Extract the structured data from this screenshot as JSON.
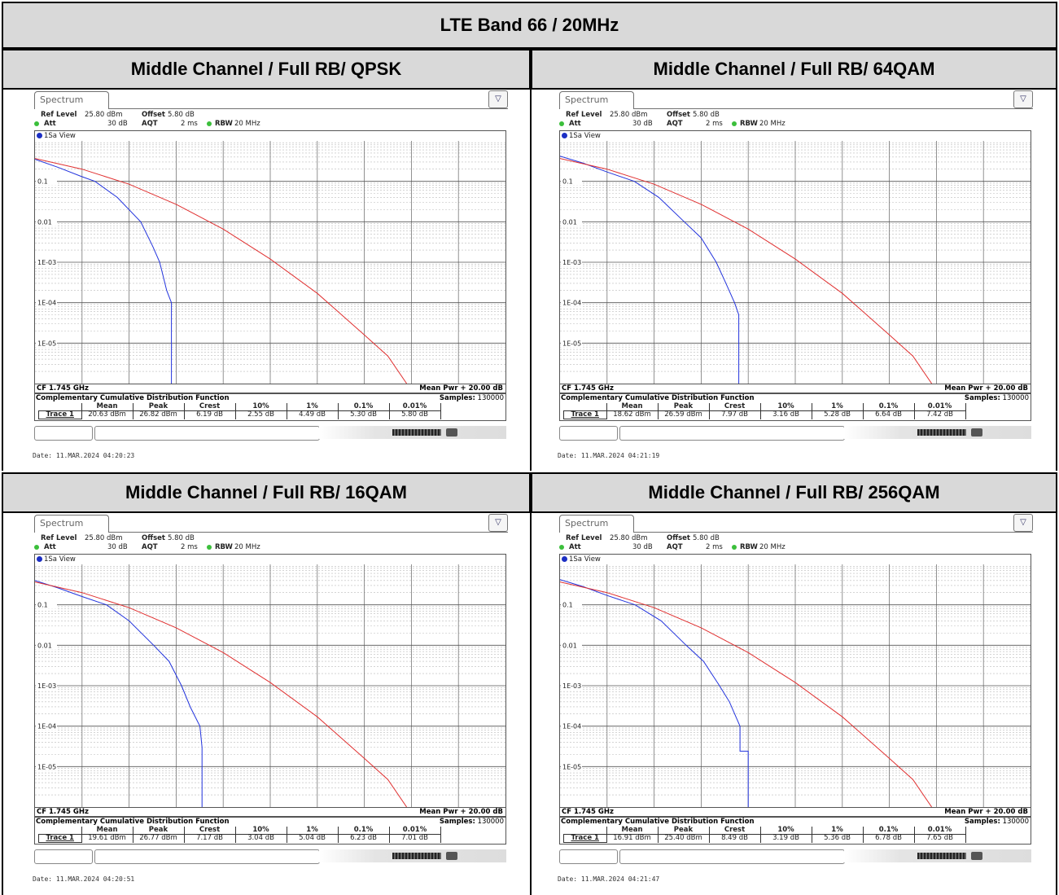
{
  "title": "LTE Band 66 / 20MHz",
  "panels": [
    {
      "header": "Middle Channel / Full RB/ QPSK",
      "tab": "Spectrum",
      "ref_level_label": "Ref Level",
      "ref_level": "25.80 dBm",
      "offset_label": "Offset",
      "offset": "5.80 dB",
      "att_label": "Att",
      "att": "30 dB",
      "aqt_label": "AQT",
      "aqt": "2 ms",
      "rbw_label": "RBW",
      "rbw": "20 MHz",
      "view": "1Sa View",
      "cf": "CF 1.745 GHz",
      "mean_pwr": "Mean Pwr + 20.00 dB",
      "ccdf_title": "Complementary Cumulative Distribution Function",
      "samples_label": "Samples:",
      "samples": "130000",
      "columns": [
        "Mean",
        "Peak",
        "Crest",
        "10%",
        "1%",
        "0.1%",
        "0.01%"
      ],
      "trace_label": "Trace 1",
      "values": [
        "20.63 dBm",
        "26.82 dBm",
        "6.19 dB",
        "2.55 dB",
        "4.49 dB",
        "5.30 dB",
        "5.80 dB"
      ],
      "date": "Date: 11.MAR.2024  04:20:23"
    },
    {
      "header": "Middle Channel / Full RB/ 64QAM",
      "tab": "Spectrum",
      "ref_level_label": "Ref Level",
      "ref_level": "25.80 dBm",
      "offset_label": "Offset",
      "offset": "5.80 dB",
      "att_label": "Att",
      "att": "30 dB",
      "aqt_label": "AQT",
      "aqt": "2 ms",
      "rbw_label": "RBW",
      "rbw": "20 MHz",
      "view": "1Sa View",
      "cf": "CF 1.745 GHz",
      "mean_pwr": "Mean Pwr + 20.00 dB",
      "ccdf_title": "Complementary Cumulative Distribution Function",
      "samples_label": "Samples:",
      "samples": "130000",
      "columns": [
        "Mean",
        "Peak",
        "Crest",
        "10%",
        "1%",
        "0.1%",
        "0.01%"
      ],
      "trace_label": "Trace 1",
      "values": [
        "18.62 dBm",
        "26.59 dBm",
        "7.97 dB",
        "3.16 dB",
        "5.28 dB",
        "6.64 dB",
        "7.42 dB"
      ],
      "date": "Date: 11.MAR.2024  04:21:19"
    },
    {
      "header": "Middle Channel / Full RB/ 16QAM",
      "tab": "Spectrum",
      "ref_level_label": "Ref Level",
      "ref_level": "25.80 dBm",
      "offset_label": "Offset",
      "offset": "5.80 dB",
      "att_label": "Att",
      "att": "30 dB",
      "aqt_label": "AQT",
      "aqt": "2 ms",
      "rbw_label": "RBW",
      "rbw": "20 MHz",
      "view": "1Sa View",
      "cf": "CF 1.745 GHz",
      "mean_pwr": "Mean Pwr + 20.00 dB",
      "ccdf_title": "Complementary Cumulative Distribution Function",
      "samples_label": "Samples:",
      "samples": "130000",
      "columns": [
        "Mean",
        "Peak",
        "Crest",
        "10%",
        "1%",
        "0.1%",
        "0.01%"
      ],
      "trace_label": "Trace 1",
      "values": [
        "19.61 dBm",
        "26.77 dBm",
        "7.17 dB",
        "3.04 dB",
        "5.04 dB",
        "6.23 dB",
        "7.01 dB"
      ],
      "date": "Date: 11.MAR.2024  04:20:51"
    },
    {
      "header": "Middle Channel / Full RB/ 256QAM",
      "tab": "Spectrum",
      "ref_level_label": "Ref Level",
      "ref_level": "25.80 dBm",
      "offset_label": "Offset",
      "offset": "5.80 dB",
      "att_label": "Att",
      "att": "30 dB",
      "aqt_label": "AQT",
      "aqt": "2 ms",
      "rbw_label": "RBW",
      "rbw": "20 MHz",
      "view": "1Sa View",
      "cf": "CF 1.745 GHz",
      "mean_pwr": "Mean Pwr + 20.00 dB",
      "ccdf_title": "Complementary Cumulative Distribution Function",
      "samples_label": "Samples:",
      "samples": "130000",
      "columns": [
        "Mean",
        "Peak",
        "Crest",
        "10%",
        "1%",
        "0.1%",
        "0.01%"
      ],
      "trace_label": "Trace 1",
      "values": [
        "16.91 dBm",
        "25.40 dBm",
        "8.49 dB",
        "3.19 dB",
        "5.36 dB",
        "6.78 dB",
        "7.65 dB"
      ],
      "date": "Date: 11.MAR.2024  04:21:47"
    }
  ],
  "colors": {
    "measured": "#2233dd",
    "reference": "#e03030",
    "header_bg": "#d9d9d9"
  },
  "chart_data": [
    {
      "type": "line",
      "log_y": true,
      "ylim": [
        1e-06,
        1
      ],
      "y_ticks": [
        "0.1",
        "0.01",
        "1E-03",
        "1E-04",
        "1E-05"
      ],
      "xlim": [
        0,
        20
      ],
      "x_unit": "dB above mean power",
      "grid": true,
      "series": [
        {
          "color": "#2233dd",
          "x": [
            0,
            1,
            2,
            2.55,
            3.5,
            4.49,
            5.0,
            5.3,
            5.6,
            5.8,
            5.8
          ],
          "y": [
            0.35,
            0.22,
            0.13,
            0.1,
            0.04,
            0.01,
            0.0025,
            0.001,
            0.0002,
            0.0001,
            1e-06
          ]
        },
        {
          "color": "#e03030",
          "x": [
            0,
            2,
            4,
            6,
            8,
            10,
            12,
            14,
            15.0,
            15.8
          ],
          "y": [
            0.368,
            0.2,
            0.085,
            0.027,
            0.0066,
            0.0012,
            0.00017,
            1.6e-05,
            4.8e-06,
            1e-06
          ]
        }
      ]
    },
    {
      "type": "line",
      "log_y": true,
      "ylim": [
        1e-06,
        1
      ],
      "y_ticks": [
        "0.1",
        "0.01",
        "1E-03",
        "1E-04",
        "1E-05"
      ],
      "xlim": [
        0,
        20
      ],
      "x_unit": "dB above mean power",
      "grid": true,
      "series": [
        {
          "color": "#2233dd",
          "x": [
            0,
            1,
            2,
            3.16,
            4.2,
            5.28,
            6.0,
            6.64,
            7.0,
            7.42,
            7.6,
            7.6
          ],
          "y": [
            0.42,
            0.28,
            0.17,
            0.1,
            0.04,
            0.01,
            0.004,
            0.001,
            0.00035,
            0.0001,
            5e-05,
            1e-06
          ]
        },
        {
          "color": "#e03030",
          "x": [
            0,
            2,
            4,
            6,
            8,
            10,
            12,
            14,
            15.0,
            15.8
          ],
          "y": [
            0.368,
            0.2,
            0.085,
            0.027,
            0.0066,
            0.0012,
            0.00017,
            1.6e-05,
            4.8e-06,
            1e-06
          ]
        }
      ]
    },
    {
      "type": "line",
      "log_y": true,
      "ylim": [
        1e-06,
        1
      ],
      "y_ticks": [
        "0.1",
        "0.01",
        "1E-03",
        "1E-04",
        "1E-05"
      ],
      "xlim": [
        0,
        20
      ],
      "x_unit": "dB above mean power",
      "grid": true,
      "series": [
        {
          "color": "#2233dd",
          "x": [
            0,
            1,
            2,
            3.04,
            4.0,
            5.04,
            5.7,
            6.23,
            6.6,
            7.01,
            7.1,
            7.1
          ],
          "y": [
            0.4,
            0.26,
            0.16,
            0.1,
            0.04,
            0.01,
            0.004,
            0.001,
            0.0003,
            0.0001,
            3e-05,
            1e-06
          ]
        },
        {
          "color": "#e03030",
          "x": [
            0,
            2,
            4,
            6,
            8,
            10,
            12,
            14,
            15.0,
            15.8
          ],
          "y": [
            0.368,
            0.2,
            0.085,
            0.027,
            0.0066,
            0.0012,
            0.00017,
            1.6e-05,
            4.8e-06,
            1e-06
          ]
        }
      ]
    },
    {
      "type": "line",
      "log_y": true,
      "ylim": [
        1e-06,
        1
      ],
      "y_ticks": [
        "0.1",
        "0.01",
        "1E-03",
        "1E-04",
        "1E-05"
      ],
      "xlim": [
        0,
        20
      ],
      "x_unit": "dB above mean power",
      "grid": true,
      "series": [
        {
          "color": "#2233dd",
          "x": [
            0,
            1,
            2,
            3.19,
            4.3,
            5.36,
            6.1,
            6.78,
            7.2,
            7.65,
            7.65,
            8.0,
            8.0
          ],
          "y": [
            0.42,
            0.28,
            0.17,
            0.1,
            0.04,
            0.01,
            0.004,
            0.001,
            0.0004,
            0.0001,
            2.4e-05,
            2.4e-05,
            1e-06
          ]
        },
        {
          "color": "#e03030",
          "x": [
            0,
            2,
            4,
            6,
            8,
            10,
            12,
            14,
            15.0,
            15.8
          ],
          "y": [
            0.368,
            0.2,
            0.085,
            0.027,
            0.0066,
            0.0012,
            0.00017,
            1.6e-05,
            4.8e-06,
            1e-06
          ]
        }
      ]
    }
  ]
}
